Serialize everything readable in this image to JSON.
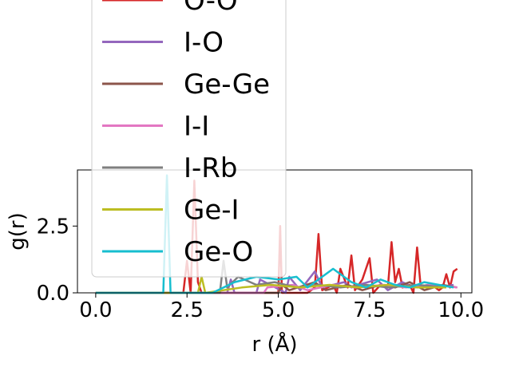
{
  "chart_data": {
    "type": "line",
    "xlabel": "r (Å)",
    "ylabel": "g(r)",
    "xlim": [
      -0.5,
      10.3
    ],
    "ylim": [
      0,
      4.6
    ],
    "xticks": [
      "0.0",
      "2.5",
      "5.0",
      "7.5",
      "10.0"
    ],
    "yticks": [
      "0.0",
      "2.5"
    ],
    "grid": false,
    "legend_placement": "upper-left",
    "series": [
      {
        "name": "O-O",
        "color": "#d62728",
        "x": [
          0,
          2.4,
          2.5,
          2.6,
          2.7,
          2.8,
          2.9,
          3.0,
          3.5,
          4.0,
          4.5,
          5.0,
          5.05,
          5.1,
          5.5,
          5.8,
          6.0,
          6.1,
          6.2,
          6.5,
          6.6,
          6.7,
          6.9,
          7.0,
          7.1,
          7.3,
          7.5,
          7.6,
          7.8,
          8.0,
          8.1,
          8.2,
          8.3,
          8.4,
          8.6,
          8.7,
          8.8,
          8.9,
          9.2,
          9.4,
          9.5,
          9.6,
          9.7,
          9.8,
          9.9
        ],
        "y": [
          0,
          0,
          1.2,
          0,
          4.2,
          0.4,
          0,
          0,
          0,
          0,
          0,
          0,
          2.5,
          0,
          0,
          0,
          0.2,
          2.2,
          0.1,
          0.3,
          0,
          0.9,
          0.2,
          1.4,
          0.1,
          0.5,
          1.3,
          0,
          0.3,
          0.2,
          1.9,
          0.4,
          0.9,
          0.2,
          0.3,
          0,
          1.7,
          0.2,
          0.3,
          0.1,
          0.2,
          0.7,
          0.2,
          0.8,
          0.9
        ]
      },
      {
        "name": "I-O",
        "color": "#9467bd",
        "x": [
          0,
          3.6,
          3.7,
          3.8,
          4.4,
          4.5,
          5.2,
          5.3,
          5.6,
          6.0,
          6.2,
          6.8,
          7.0,
          7.2,
          7.7,
          8.0,
          8.4,
          8.7,
          9.1,
          9.4,
          9.8
        ],
        "y": [
          0,
          0,
          0.5,
          0,
          0,
          0.5,
          0,
          0.6,
          0.1,
          0.8,
          0.2,
          0.4,
          0.2,
          0.3,
          0.5,
          0.1,
          0.4,
          0.2,
          0.3,
          0.2,
          0.3
        ]
      },
      {
        "name": "Ge-Ge",
        "color": "#8c564b",
        "x": [
          0,
          5.0,
          5.1,
          5.3,
          6.0,
          6.3,
          6.9,
          7.3,
          7.8,
          8.2,
          8.6,
          9.0,
          9.5,
          9.9
        ],
        "y": [
          0,
          0,
          0.3,
          0.1,
          0.4,
          0.1,
          0.3,
          0.1,
          0.3,
          0.2,
          0.4,
          0.1,
          0.3,
          0.2
        ]
      },
      {
        "name": "I-I",
        "color": "#e377c2",
        "x": [
          0,
          4.6,
          4.7,
          5.4,
          5.8,
          6.5,
          7.1,
          7.9,
          8.5,
          9.2,
          9.9
        ],
        "y": [
          0,
          0,
          0.2,
          0.3,
          0.1,
          0.3,
          0.2,
          0.3,
          0.2,
          0.3,
          0.2
        ]
      },
      {
        "name": "I-Rb",
        "color": "#7f7f7f",
        "x": [
          0,
          3.4,
          3.5,
          3.6,
          3.9,
          4.4,
          4.9,
          5.5,
          6.1,
          6.7,
          7.4,
          8.0,
          8.8,
          9.6
        ],
        "y": [
          0,
          0,
          1.2,
          0.2,
          0.6,
          0.3,
          0.4,
          0.2,
          0.3,
          0.2,
          0.3,
          0.2,
          0.3,
          0.2
        ]
      },
      {
        "name": "Ge-I",
        "color": "#bcbd22",
        "x": [
          0,
          2.8,
          2.9,
          3.0,
          4.0,
          4.8,
          5.6,
          6.4,
          7.2,
          8.0,
          8.8,
          9.6
        ],
        "y": [
          0,
          0,
          0.6,
          0,
          0.2,
          0.3,
          0.2,
          0.3,
          0.2,
          0.3,
          0.2,
          0.2
        ]
      },
      {
        "name": "Ge-O",
        "color": "#17becf",
        "x": [
          0,
          1.85,
          1.95,
          2.05,
          2.6,
          3.2,
          3.8,
          4.4,
          5.0,
          5.5,
          5.8,
          6.2,
          6.5,
          7.0,
          7.4,
          7.8,
          8.2,
          8.6,
          9.0,
          9.4,
          9.8
        ],
        "y": [
          0,
          0,
          4.4,
          0,
          0,
          0,
          0.4,
          0.6,
          0.5,
          0.6,
          0.2,
          0.6,
          0.9,
          0.4,
          0.2,
          0.5,
          0.3,
          0.2,
          0.4,
          0.3,
          0.2
        ]
      }
    ]
  }
}
